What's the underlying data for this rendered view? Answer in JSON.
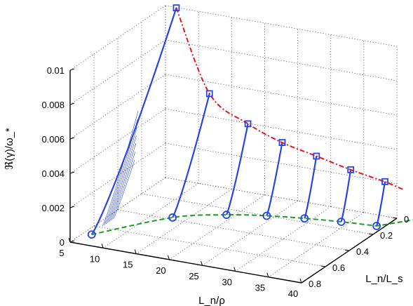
{
  "chart_data": {
    "type": "line3d",
    "title": "",
    "xlabel": "L_n/ρ",
    "ylabel": "L_n/L_s",
    "zlabel": "ℜ(γ)/ω_*",
    "xlim": [
      5,
      40
    ],
    "ylim": [
      0,
      0.8
    ],
    "zlim": [
      0,
      0.01
    ],
    "x_ticks": [
      "5",
      "10",
      "15",
      "20",
      "25",
      "30",
      "35",
      "40"
    ],
    "y_ticks": [
      "0",
      "0.2",
      "0.4",
      "0.6",
      "0.8"
    ],
    "z_ticks": [
      "0",
      "0.002",
      "0.004",
      "0.006",
      "0.008",
      "0.01"
    ],
    "grid": true,
    "colors": {
      "curves": "#2846e6",
      "peak_line": "#e8141e",
      "base_line": "#1e9e1e",
      "markers": "#2846e6"
    },
    "series": [
      {
        "x": 7,
        "y_start": 0.73,
        "y_end": 0.02,
        "z_start": 0.00025,
        "z_end": 0.0101
      },
      {
        "x": 14,
        "y_start": 0.44,
        "y_end": 0.13,
        "z_start": 0.00035,
        "z_end": 0.0061
      },
      {
        "x": 20,
        "y_start": 0.32,
        "y_end": 0.14,
        "z_start": 0.00035,
        "z_end": 0.0048
      },
      {
        "x": 25,
        "y_start": 0.26,
        "y_end": 0.13,
        "z_start": 0.00035,
        "z_end": 0.004
      },
      {
        "x": 30,
        "y_start": 0.22,
        "y_end": 0.12,
        "z_start": 0.00035,
        "z_end": 0.0035
      },
      {
        "x": 35,
        "y_start": 0.19,
        "y_end": 0.11,
        "z_start": 0.00035,
        "z_end": 0.003
      },
      {
        "x": 40,
        "y_start": 0.17,
        "y_end": 0.1,
        "z_start": 0.00035,
        "z_end": 0.0026
      }
    ],
    "thin_curves_x": 7,
    "thin_curves_count": 7
  }
}
